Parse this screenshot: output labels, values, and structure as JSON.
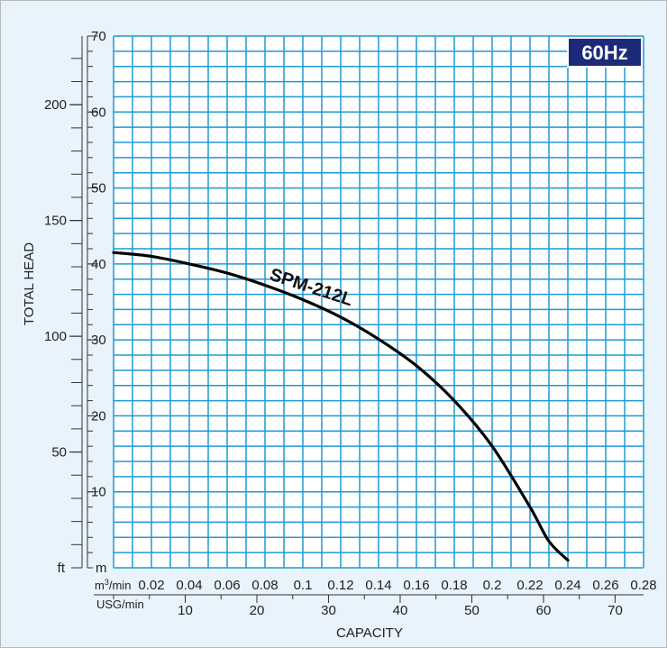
{
  "colors": {
    "background": "#e8f3fb",
    "plot_area": "#ffffff",
    "grid": "#1e9ad6",
    "curve": "#000000",
    "badge_bg": "#1d2a7a",
    "badge_border": "#ffffff",
    "badge_text": "#ffffff",
    "axis_text": "#222222"
  },
  "badge": {
    "label": "60Hz"
  },
  "chart_data": {
    "type": "line",
    "title": "",
    "xlabel": "CAPACITY",
    "ylabel": "TOTAL HEAD",
    "grid": true,
    "x_primary": {
      "unit_prefix": "m",
      "unit_sup": "3",
      "unit_suffix": "/min",
      "min": 0,
      "max": 0.28,
      "ticks": [
        "0.02",
        "0.04",
        "0.06",
        "0.08",
        "0.1",
        "0.12",
        "0.14",
        "0.16",
        "0.18",
        "0.2",
        "0.22",
        "0.24",
        "0.26",
        "0.28"
      ],
      "tick_values": [
        0.02,
        0.04,
        0.06,
        0.08,
        0.1,
        0.12,
        0.14,
        0.16,
        0.18,
        0.2,
        0.22,
        0.24,
        0.26,
        0.28
      ]
    },
    "x_secondary": {
      "unit": "USG/min",
      "ticks": [
        "10",
        "20",
        "30",
        "40",
        "50",
        "60",
        "70"
      ],
      "tick_values": [
        10,
        20,
        30,
        40,
        50,
        60,
        70
      ]
    },
    "y_primary": {
      "unit": "m",
      "min": 0,
      "max": 70,
      "ticks": [
        "10",
        "20",
        "30",
        "40",
        "50",
        "60",
        "70"
      ],
      "tick_values": [
        10,
        20,
        30,
        40,
        50,
        60,
        70
      ]
    },
    "y_secondary": {
      "unit": "ft",
      "ticks": [
        "50",
        "100",
        "150",
        "200"
      ],
      "tick_values": [
        50,
        100,
        150,
        200
      ]
    },
    "series": [
      {
        "name": "SPM-212L",
        "x": [
          0,
          0.02,
          0.04,
          0.06,
          0.08,
          0.1,
          0.12,
          0.14,
          0.16,
          0.18,
          0.2,
          0.22,
          0.23,
          0.24
        ],
        "y": [
          41.5,
          41,
          40,
          38.8,
          37.2,
          35.3,
          33,
          30.1,
          26.6,
          22,
          16,
          8,
          3.5,
          1
        ]
      }
    ]
  }
}
